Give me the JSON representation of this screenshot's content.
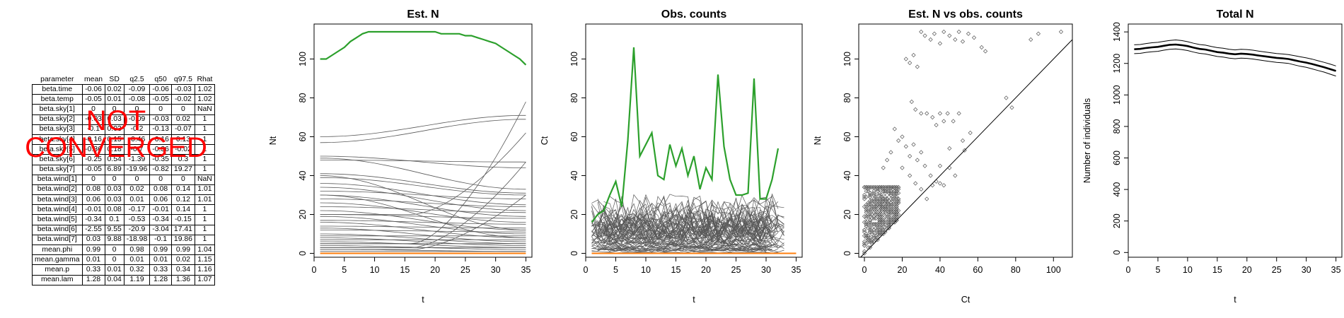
{
  "stats_table": {
    "headers": [
      "parameter",
      "mean",
      "SD",
      "q2.5",
      "q50",
      "q97.5",
      "Rhat"
    ],
    "rows": [
      [
        "beta.time",
        "-0.06",
        "0.02",
        "-0.09",
        "-0.06",
        "-0.03",
        "1.02"
      ],
      [
        "beta.temp",
        "-0.05",
        "0.01",
        "-0.08",
        "-0.05",
        "-0.02",
        "1.02"
      ],
      [
        "beta.sky[1]",
        "0",
        "0",
        "0",
        "0",
        "0",
        "NaN"
      ],
      [
        "beta.sky[2]",
        "-0.03",
        "0.03",
        "-0.09",
        "-0.03",
        "0.02",
        "1"
      ],
      [
        "beta.sky[3]",
        "-0.1",
        "0.03",
        "-0.2",
        "-0.13",
        "-0.07",
        "1"
      ],
      [
        "beta.sky[4]",
        "-0.16",
        "0.15",
        "-0.46",
        "-0.16",
        "0.13",
        "1"
      ],
      [
        "beta.sky[5]",
        "-0.36",
        "0.18",
        "-0.7",
        "-0.36",
        "-0.02",
        "1"
      ],
      [
        "beta.sky[6]",
        "-0.25",
        "0.54",
        "-1.39",
        "-0.35",
        "0.3",
        "1"
      ],
      [
        "beta.sky[7]",
        "-0.05",
        "6.89",
        "-19.96",
        "-0.82",
        "19.27",
        "1"
      ],
      [
        "beta.wind[1]",
        "0",
        "0",
        "0",
        "0",
        "0",
        "NaN"
      ],
      [
        "beta.wind[2]",
        "0.08",
        "0.03",
        "0.02",
        "0.08",
        "0.14",
        "1.01"
      ],
      [
        "beta.wind[3]",
        "0.06",
        "0.03",
        "0.01",
        "0.06",
        "0.12",
        "1.01"
      ],
      [
        "beta.wind[4]",
        "-0.01",
        "0.08",
        "-0.17",
        "-0.01",
        "0.14",
        "1"
      ],
      [
        "beta.wind[5]",
        "-0.34",
        "0.1",
        "-0.53",
        "-0.34",
        "-0.15",
        "1"
      ],
      [
        "beta.wind[6]",
        "-2.55",
        "9.55",
        "-20.9",
        "-3.04",
        "17.41",
        "1"
      ],
      [
        "beta.wind[7]",
        "0.03",
        "9.88",
        "-18.98",
        "-0.1",
        "19.86",
        "1"
      ],
      [
        "mean.phi",
        "0.99",
        "0",
        "0.98",
        "0.99",
        "0.99",
        "1.04"
      ],
      [
        "mean.gamma",
        "0.01",
        "0",
        "0.01",
        "0.01",
        "0.02",
        "1.15"
      ],
      [
        "mean.p",
        "0.33",
        "0.01",
        "0.32",
        "0.33",
        "0.34",
        "1.16"
      ],
      [
        "mean.lam",
        "1.28",
        "0.04",
        "1.19",
        "1.28",
        "1.36",
        "1.07"
      ]
    ]
  },
  "warning": {
    "line1": "NOT",
    "line2": "CONVERGED",
    "color": "#ff0000"
  },
  "colors": {
    "highlight_series": "#2ca02c",
    "low_series": "#ff7f0e",
    "site_lines": "#595959",
    "scatter_points": "#555555"
  },
  "chart_data": [
    {
      "type": "line",
      "title": "Est. N",
      "xlabel": "t",
      "ylabel": "Nt",
      "xlim": [
        0,
        36
      ],
      "ylim": [
        -2,
        118
      ],
      "xticks": [
        0,
        5,
        10,
        15,
        20,
        25,
        30,
        35
      ],
      "yticks": [
        0,
        20,
        40,
        60,
        80,
        100
      ],
      "x": [
        1,
        2,
        3,
        4,
        5,
        6,
        7,
        8,
        9,
        10,
        11,
        12,
        13,
        14,
        15,
        16,
        17,
        18,
        19,
        20,
        21,
        22,
        23,
        24,
        25,
        26,
        27,
        28,
        29,
        30,
        31,
        32,
        33,
        34,
        35
      ],
      "series": [
        {
          "role": "highlight",
          "values": [
            100,
            100,
            102,
            104,
            106,
            109,
            111,
            113,
            114,
            114,
            114,
            114,
            114,
            114,
            114,
            114,
            114,
            114,
            114,
            114,
            113,
            113,
            113,
            113,
            112,
            112,
            111,
            110,
            109,
            108,
            106,
            104,
            102,
            100,
            97
          ]
        },
        {
          "role": "low",
          "values": [
            0,
            0,
            0,
            0,
            0,
            0,
            0,
            0,
            0,
            0,
            0,
            0,
            0,
            0,
            0,
            0,
            0,
            0,
            0,
            0,
            0,
            0,
            0,
            0,
            0,
            0,
            0,
            0,
            0,
            0,
            0,
            0,
            0,
            0,
            0
          ]
        }
      ],
      "background_lines": [
        {
          "start": 57,
          "end": 69,
          "shape": "flat"
        },
        {
          "start": 60,
          "end": 71,
          "shape": "flat"
        },
        {
          "start": 48,
          "end": 47,
          "shape": "flat"
        },
        {
          "start": 50,
          "end": 44,
          "shape": "flat"
        },
        {
          "start": 49,
          "end": 33,
          "shape": "flat"
        },
        {
          "start": 41,
          "end": 31,
          "shape": "flat"
        },
        {
          "start": 39,
          "end": 30,
          "shape": "flat"
        },
        {
          "start": 36,
          "end": 25,
          "shape": "flat"
        },
        {
          "start": 34,
          "end": 22,
          "shape": "flat"
        },
        {
          "start": 32,
          "end": 28,
          "shape": "flat"
        },
        {
          "start": 30,
          "end": 19,
          "shape": "flat"
        },
        {
          "start": 28,
          "end": 24,
          "shape": "flat"
        },
        {
          "start": 26,
          "end": 16,
          "shape": "flat"
        },
        {
          "start": 24,
          "end": 21,
          "shape": "flat"
        },
        {
          "start": 22,
          "end": 12,
          "shape": "flat"
        },
        {
          "start": 20,
          "end": 18,
          "shape": "flat"
        },
        {
          "start": 19,
          "end": 10,
          "shape": "flat"
        },
        {
          "start": 17,
          "end": 15,
          "shape": "flat"
        },
        {
          "start": 16,
          "end": 8,
          "shape": "flat"
        },
        {
          "start": 14,
          "end": 13,
          "shape": "flat"
        },
        {
          "start": 13,
          "end": 6,
          "shape": "flat"
        },
        {
          "start": 12,
          "end": 11,
          "shape": "flat"
        },
        {
          "start": 10,
          "end": 5,
          "shape": "flat"
        },
        {
          "start": 9,
          "end": 9,
          "shape": "flat"
        },
        {
          "start": 8,
          "end": 4,
          "shape": "flat"
        },
        {
          "start": 7,
          "end": 7,
          "shape": "flat"
        },
        {
          "start": 6,
          "end": 3,
          "shape": "flat"
        },
        {
          "start": 5,
          "end": 5,
          "shape": "flat"
        },
        {
          "start": 4,
          "end": 2,
          "shape": "flat"
        },
        {
          "start": 3,
          "end": 3,
          "shape": "flat"
        },
        {
          "start": 2,
          "end": 1,
          "shape": "flat"
        },
        {
          "start": 1,
          "end": 1,
          "shape": "flat"
        },
        {
          "start": 5,
          "end": 78,
          "shape": "late-rise"
        },
        {
          "start": 20,
          "end": 62,
          "shape": "late-rise"
        },
        {
          "start": 3,
          "end": 47,
          "shape": "late-rise"
        },
        {
          "start": 30,
          "end": 8,
          "shape": "flat"
        },
        {
          "start": 40,
          "end": 12,
          "shape": "flat"
        },
        {
          "start": 2,
          "end": 30,
          "shape": "late-rise"
        }
      ]
    },
    {
      "type": "line",
      "title": "Obs. counts",
      "xlabel": "t",
      "ylabel": "Ct",
      "xlim": [
        0,
        36
      ],
      "ylim": [
        -2,
        118
      ],
      "xticks": [
        0,
        5,
        10,
        15,
        20,
        25,
        30,
        35
      ],
      "yticks": [
        0,
        20,
        40,
        60,
        80,
        100
      ],
      "x": [
        1,
        2,
        3,
        4,
        5,
        6,
        7,
        8,
        9,
        10,
        11,
        12,
        13,
        14,
        15,
        16,
        17,
        18,
        19,
        20,
        21,
        22,
        23,
        24,
        25,
        26,
        27,
        28,
        29,
        30,
        31,
        32,
        33,
        34,
        35
      ],
      "series": [
        {
          "role": "highlight",
          "values": [
            16,
            20,
            22,
            30,
            37,
            24,
            58,
            106,
            50,
            56,
            62,
            40,
            38,
            56,
            45,
            54,
            40,
            50,
            33,
            44,
            38,
            92,
            55,
            38,
            30,
            30,
            31,
            90,
            28,
            28,
            38,
            54,
            null,
            null,
            null
          ]
        },
        {
          "role": "low",
          "values": [
            0,
            0,
            0,
            0,
            0,
            0,
            0,
            0,
            0,
            0,
            0,
            0,
            0,
            0,
            0,
            0,
            0,
            0,
            0,
            0,
            0,
            0,
            0,
            0,
            0,
            0,
            0,
            0,
            0,
            0,
            0,
            0,
            0,
            0,
            0
          ]
        }
      ],
      "noise_series_count": 70,
      "noise_max": 32
    },
    {
      "type": "scatter",
      "title": "Est. N vs obs. counts",
      "xlabel": "Ct",
      "ylabel": "Nt",
      "xlim": [
        -3,
        110
      ],
      "ylim": [
        -2,
        118
      ],
      "xticks": [
        0,
        20,
        40,
        60,
        80,
        100
      ],
      "yticks": [
        0,
        20,
        40,
        60,
        80,
        100
      ],
      "reference_line": "1:1",
      "dense_region": {
        "x": [
          0,
          18
        ],
        "y": [
          0,
          34
        ]
      },
      "points": [
        [
          30,
          114
        ],
        [
          32,
          112
        ],
        [
          35,
          110
        ],
        [
          37,
          113
        ],
        [
          40,
          108
        ],
        [
          42,
          114
        ],
        [
          45,
          112
        ],
        [
          48,
          110
        ],
        [
          50,
          114
        ],
        [
          52,
          109
        ],
        [
          55,
          113
        ],
        [
          58,
          111
        ],
        [
          62,
          106
        ],
        [
          64,
          104
        ],
        [
          88,
          110
        ],
        [
          92,
          113
        ],
        [
          104,
          114
        ],
        [
          22,
          100
        ],
        [
          24,
          98
        ],
        [
          26,
          102
        ],
        [
          28,
          96
        ],
        [
          25,
          78
        ],
        [
          27,
          74
        ],
        [
          30,
          72
        ],
        [
          33,
          72
        ],
        [
          36,
          70
        ],
        [
          38,
          66
        ],
        [
          40,
          72
        ],
        [
          42,
          68
        ],
        [
          44,
          72
        ],
        [
          47,
          68
        ],
        [
          50,
          72
        ],
        [
          45,
          54
        ],
        [
          52,
          58
        ],
        [
          56,
          62
        ],
        [
          75,
          80
        ],
        [
          78,
          75
        ],
        [
          53,
          53
        ],
        [
          20,
          60
        ],
        [
          22,
          55
        ],
        [
          24,
          50
        ],
        [
          26,
          56
        ],
        [
          28,
          48
        ],
        [
          30,
          52
        ],
        [
          32,
          45
        ],
        [
          35,
          40
        ],
        [
          38,
          37
        ],
        [
          40,
          45
        ],
        [
          42,
          35
        ],
        [
          16,
          64
        ],
        [
          18,
          58
        ],
        [
          12,
          48
        ],
        [
          14,
          52
        ],
        [
          10,
          44
        ],
        [
          20,
          44
        ],
        [
          24,
          40
        ],
        [
          27,
          36
        ],
        [
          30,
          33
        ],
        [
          33,
          28
        ],
        [
          36,
          35
        ],
        [
          40,
          36
        ],
        [
          45,
          44
        ],
        [
          48,
          40
        ]
      ]
    },
    {
      "type": "line",
      "title": "Total N",
      "xlabel": "t",
      "ylabel": "Number of individuals",
      "xlim": [
        0,
        36
      ],
      "ylim": [
        -30,
        1450
      ],
      "xticks": [
        0,
        5,
        10,
        15,
        20,
        25,
        30,
        35
      ],
      "yticks": [
        0,
        200,
        400,
        600,
        800,
        1000,
        1200,
        1400
      ],
      "x": [
        1,
        2,
        3,
        4,
        5,
        6,
        7,
        8,
        9,
        10,
        11,
        12,
        13,
        14,
        15,
        16,
        17,
        18,
        19,
        20,
        21,
        22,
        23,
        24,
        25,
        26,
        27,
        28,
        29,
        30,
        31,
        32,
        33,
        34,
        35
      ],
      "series": [
        {
          "name": "median",
          "values": [
            1290,
            1292,
            1298,
            1302,
            1305,
            1312,
            1318,
            1320,
            1316,
            1310,
            1300,
            1292,
            1288,
            1280,
            1272,
            1268,
            1262,
            1258,
            1262,
            1260,
            1256,
            1250,
            1245,
            1240,
            1235,
            1232,
            1228,
            1220,
            1212,
            1205,
            1196,
            1186,
            1176,
            1164,
            1152
          ]
        },
        {
          "name": "upper",
          "values": [
            1318,
            1320,
            1326,
            1331,
            1334,
            1340,
            1346,
            1349,
            1345,
            1338,
            1328,
            1320,
            1316,
            1308,
            1300,
            1296,
            1290,
            1286,
            1290,
            1288,
            1284,
            1278,
            1273,
            1268,
            1263,
            1260,
            1256,
            1249,
            1242,
            1235,
            1227,
            1217,
            1207,
            1196,
            1184
          ]
        },
        {
          "name": "lower",
          "values": [
            1262,
            1264,
            1270,
            1274,
            1277,
            1284,
            1290,
            1292,
            1288,
            1282,
            1272,
            1264,
            1260,
            1252,
            1244,
            1240,
            1234,
            1230,
            1234,
            1232,
            1228,
            1222,
            1217,
            1212,
            1207,
            1204,
            1200,
            1191,
            1182,
            1175,
            1165,
            1155,
            1145,
            1132,
            1120
          ]
        }
      ]
    }
  ]
}
